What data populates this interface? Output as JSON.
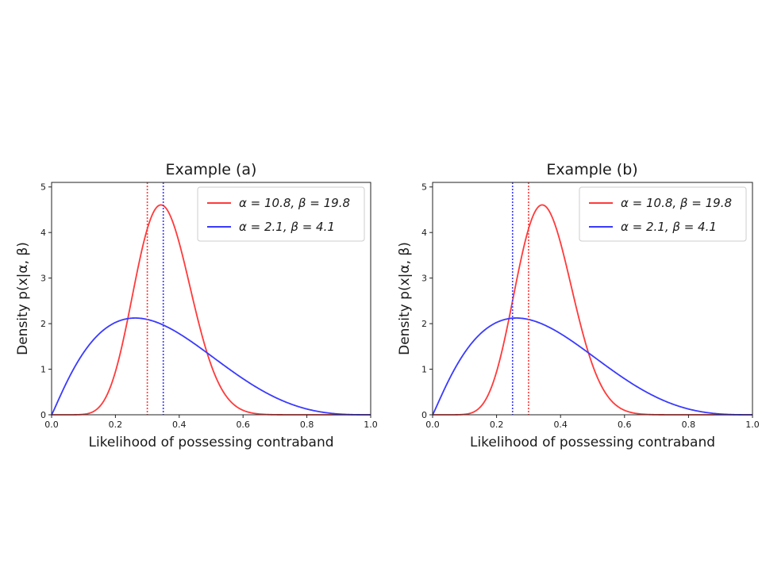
{
  "colors": {
    "red": "#ff3a3a",
    "blue": "#3a3aff"
  },
  "chart_data": [
    {
      "type": "line",
      "title": "Example (a)",
      "xlabel": "Likelihood of possessing contraband",
      "ylabel": "Density p(x|α, β)",
      "xlim": [
        0.0,
        1.0
      ],
      "ylim": [
        0,
        5.1
      ],
      "xticks": [
        "0.0",
        "0.2",
        "0.4",
        "0.6",
        "0.8",
        "1.0"
      ],
      "yticks": [
        "0",
        "1",
        "2",
        "3",
        "4",
        "5"
      ],
      "grid": false,
      "legend_position": "top-right",
      "series": [
        {
          "name": "α = 10.8,  β = 19.8",
          "distribution": "beta",
          "alpha": 10.8,
          "beta": 19.8,
          "color": "#ff3a3a"
        },
        {
          "name": "α = 2.1,  β = 4.1",
          "distribution": "beta",
          "alpha": 2.1,
          "beta": 4.1,
          "color": "#3a3aff"
        }
      ],
      "vertical_lines": [
        {
          "x": 0.3,
          "color": "#ff3a3a",
          "style": "dotted"
        },
        {
          "x": 0.35,
          "color": "#3a3aff",
          "style": "dotted"
        }
      ]
    },
    {
      "type": "line",
      "title": "Example (b)",
      "xlabel": "Likelihood of possessing contraband",
      "ylabel": "Density p(x|α, β)",
      "xlim": [
        0.0,
        1.0
      ],
      "ylim": [
        0,
        5.1
      ],
      "xticks": [
        "0.0",
        "0.2",
        "0.4",
        "0.6",
        "0.8",
        "1.0"
      ],
      "yticks": [
        "0",
        "1",
        "2",
        "3",
        "4",
        "5"
      ],
      "grid": false,
      "legend_position": "top-right",
      "series": [
        {
          "name": "α = 10.8,  β = 19.8",
          "distribution": "beta",
          "alpha": 10.8,
          "beta": 19.8,
          "color": "#ff3a3a"
        },
        {
          "name": "α = 2.1,  β = 4.1",
          "distribution": "beta",
          "alpha": 2.1,
          "beta": 4.1,
          "color": "#3a3aff"
        }
      ],
      "vertical_lines": [
        {
          "x": 0.3,
          "color": "#ff3a3a",
          "style": "dotted"
        },
        {
          "x": 0.25,
          "color": "#3a3aff",
          "style": "dotted"
        }
      ]
    }
  ]
}
